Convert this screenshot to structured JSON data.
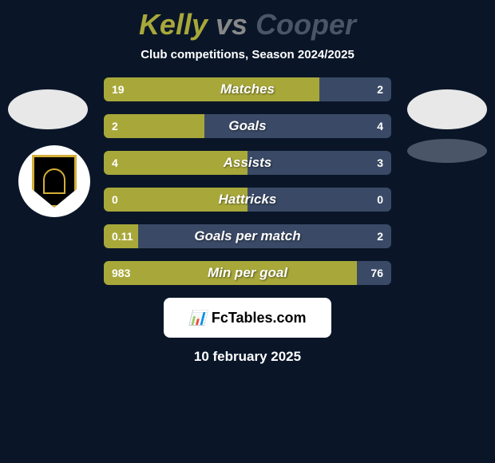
{
  "title": {
    "player_left": "Kelly",
    "vs": "vs",
    "player_right": "Cooper"
  },
  "subtitle": "Club competitions, Season 2024/2025",
  "colors": {
    "left_fill": "#a8a83a",
    "right_fill": "#3a4a66",
    "background": "#0a1628",
    "title_left": "#a8a83a",
    "title_right": "#4a5568"
  },
  "stats": [
    {
      "label": "Matches",
      "left_value": "19",
      "right_value": "2",
      "left_pct": 75,
      "right_pct": 25
    },
    {
      "label": "Goals",
      "left_value": "2",
      "right_value": "4",
      "left_pct": 35,
      "right_pct": 65
    },
    {
      "label": "Assists",
      "left_value": "4",
      "right_value": "3",
      "left_pct": 50,
      "right_pct": 50
    },
    {
      "label": "Hattricks",
      "left_value": "0",
      "right_value": "0",
      "left_pct": 50,
      "right_pct": 50
    },
    {
      "label": "Goals per match",
      "left_value": "0.11",
      "right_value": "2",
      "left_pct": 12,
      "right_pct": 88
    },
    {
      "label": "Min per goal",
      "left_value": "983",
      "right_value": "76",
      "left_pct": 88,
      "right_pct": 12
    }
  ],
  "footer": {
    "brand": "FcTables.com",
    "date": "10 february 2025"
  }
}
